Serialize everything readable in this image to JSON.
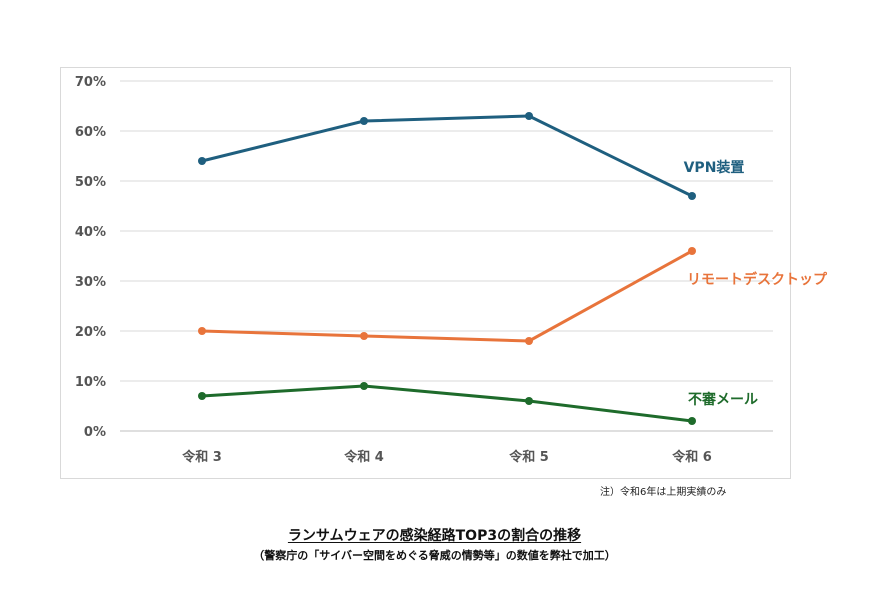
{
  "chart_data": {
    "type": "line",
    "title": "ランサムウェアの感染経路TOP3の割合の推移",
    "subtitle": "（警察庁の「サイバー空間をめぐる脅威の情勢等」の数値を弊社で加工）",
    "note": "注）令和6年は上期実績のみ",
    "categories": [
      "令和 3",
      "令和 4",
      "令和 5",
      "令和 6"
    ],
    "y_ticks": [
      "0%",
      "10%",
      "20%",
      "30%",
      "40%",
      "50%",
      "60%",
      "70%"
    ],
    "ylim": [
      0,
      70
    ],
    "grid": true,
    "series": [
      {
        "name": "VPN装置",
        "color": "#1f5f7f",
        "values": [
          54,
          62,
          63,
          47
        ]
      },
      {
        "name": "リモートデスクトップ",
        "color": "#e8743b",
        "values": [
          20,
          19,
          18,
          36
        ]
      },
      {
        "name": "不審メール",
        "color": "#1e6b2b",
        "values": [
          7,
          9,
          6,
          2
        ]
      }
    ]
  }
}
